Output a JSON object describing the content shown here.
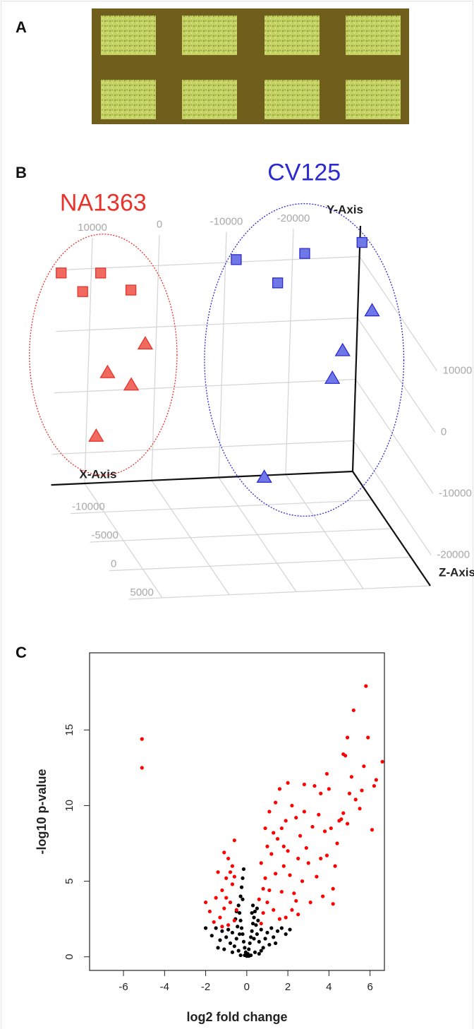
{
  "panel_labels": [
    "A",
    "B",
    "C"
  ],
  "chart_data": [
    {
      "type": "scatter3d",
      "xlabel": "X-Axis",
      "ylabel": "Y-Axis",
      "zlabel": "Z-Axis",
      "xlim": [
        -30000,
        15000
      ],
      "ylim": [
        -25000,
        15000
      ],
      "zlim": [
        -15000,
        5000
      ],
      "xticks": [
        -20000,
        -10000,
        0,
        10000
      ],
      "yticks": [
        -20000,
        -10000,
        0,
        10000
      ],
      "zticks": [
        -10000,
        -5000,
        0,
        5000
      ],
      "series": [
        {
          "name": "NA1363",
          "color": "#e8332c",
          "fill": "#f06a60",
          "x": [
            14500,
            8600,
            11200,
            4000,
            1600,
            7100,
            3500,
            8500
          ],
          "y": [
            9500,
            9200,
            6300,
            6200,
            -2700,
            -7100,
            -9300,
            -17400
          ],
          "z": [
            -15000,
            -15000,
            -15000,
            -15000,
            -15000,
            -15000,
            -15000,
            -15000
          ],
          "marker": [
            "square",
            "square",
            "square",
            "square",
            "triangle",
            "triangle",
            "triangle",
            "triangle"
          ]
        },
        {
          "name": "CV125",
          "color": "#2b2bd0",
          "fill": "#6f78e6",
          "x": [
            -11600,
            -21800,
            -17900,
            -29100,
            -28500,
            -25500,
            -24700,
            -15600
          ],
          "y": [
            10400,
            10900,
            6300,
            14200,
            6800,
            -1400,
            -6800,
            -23400
          ],
          "z": [
            -15000,
            -15000,
            -15000,
            -13000,
            -9000,
            -11000,
            -12000,
            -13000
          ],
          "marker": [
            "square",
            "square",
            "square",
            "square",
            "triangle",
            "triangle",
            "triangle",
            "triangle"
          ]
        }
      ]
    },
    {
      "type": "scatter",
      "xlabel": "log2 fold change",
      "ylabel": "-log10 p-value",
      "xlim": [
        -7.65,
        6.7
      ],
      "ylim": [
        -0.9,
        20.1
      ],
      "xticks": [
        -6,
        -4,
        -2,
        0,
        2,
        4,
        6
      ],
      "yticks": [
        0,
        5,
        10,
        15
      ],
      "series": [
        {
          "color": "#000000",
          "x": [
            0,
            0.05,
            -0.05,
            0.1,
            -0.1,
            0.15,
            -0.15,
            0.2,
            -0.2,
            0.25,
            -0.25,
            0.3,
            -0.3,
            0.35,
            -0.35,
            0.4,
            -0.4,
            -0.3,
            -0.25,
            -0.2,
            -0.15,
            0.3,
            0.25,
            -0.2,
            0.5,
            0.6,
            0.7,
            0.8,
            0.9,
            1.0,
            1.1,
            1.2,
            1.3,
            1.5,
            1.7,
            1.9,
            2.1,
            0.4,
            0.6,
            -0.5,
            -0.6,
            -0.7,
            -0.8,
            -0.9,
            -1.0,
            -1.1,
            -1.2,
            -1.3,
            -1.5,
            -1.7,
            -2.0,
            -0.4,
            -0.3,
            0.2,
            -0.45,
            0.45,
            0.55,
            -0.55,
            0.35,
            -0.35,
            0.1,
            -0.1,
            0.7,
            -0.7,
            1.4,
            -1.4,
            0.5,
            -0.5
          ],
          "y": [
            0.05,
            0.2,
            0.3,
            0.5,
            0.6,
            0.9,
            1.0,
            1.3,
            1.5,
            1.7,
            1.9,
            2.2,
            2.4,
            2.6,
            2.9,
            3.0,
            3.4,
            4.0,
            4.6,
            5.2,
            5.8,
            3.4,
            2.9,
            3.8,
            1.5,
            1.0,
            1.8,
            0.6,
            1.2,
            1.6,
            0.8,
            1.9,
            1.3,
            1.7,
            1.9,
            1.5,
            1.8,
            0.3,
            0.2,
            1.2,
            0.7,
            1.6,
            0.9,
            1.8,
            1.3,
            0.5,
            1.7,
            1.1,
            1.9,
            1.4,
            1.9,
            0.4,
            0.1,
            0.1,
            2.0,
            2.1,
            2.4,
            2.5,
            1.2,
            1.5,
            0.05,
            0.1,
            0.4,
            0.3,
            0.9,
            0.6,
            3.2,
            3.0
          ]
        },
        {
          "color": "#ff0000",
          "x": [
            -5.1,
            -5.1,
            5.8,
            5.2,
            4.9,
            5.9,
            4.7,
            4.8,
            6.6,
            5.7,
            6.3,
            6.2,
            5.1,
            5.6,
            5.0,
            5.3,
            5.5,
            4.7,
            4.9,
            6.1,
            4.6,
            3.9,
            4.0,
            3.6,
            3.3,
            2.8,
            2.0,
            1.6,
            4.5,
            4.1,
            3.8,
            3.5,
            4.4,
            3.9,
            4.3,
            4.2,
            4.2,
            3.7,
            3.4,
            3.0,
            2.9,
            2.6,
            2.4,
            2.2,
            1.9,
            1.7,
            2.7,
            2.5,
            2.3,
            2.0,
            1.8,
            1.5,
            1.4,
            1.2,
            1.1,
            1.0,
            0.9,
            0.8,
            0.7,
            0.6,
            1.3,
            1.6,
            1.9,
            2.2,
            2.5,
            0.7,
            0.9,
            1.1,
            1.4,
            1.0,
            3.1,
            3.2,
            2.8,
            3.6,
            2.1,
            1.7,
            0.8,
            1.3,
            1.8,
            2.4,
            -0.6,
            -0.9,
            -1.0,
            -0.7,
            -1.2,
            -1.5,
            -0.8,
            -1.1,
            -1.3,
            -0.6,
            -0.9,
            -1.6,
            -1.8,
            -2.0,
            -1.4,
            -0.7,
            -0.5,
            -1.2,
            -0.8,
            -1.0,
            -0.6,
            -1.1
          ],
          "y": [
            14.4,
            12.5,
            17.9,
            16.3,
            14.5,
            14.5,
            13.4,
            13.3,
            12.9,
            12.6,
            11.7,
            11.3,
            11.9,
            11.0,
            10.8,
            10.4,
            9.8,
            9.5,
            8.8,
            8.4,
            9.1,
            12.1,
            11.1,
            10.8,
            11.3,
            11.4,
            11.5,
            11.1,
            9.0,
            8.5,
            8.3,
            9.4,
            7.5,
            6.7,
            6.0,
            4.5,
            3.5,
            4.0,
            5.3,
            6.2,
            7.2,
            8.0,
            9.2,
            10.0,
            9.0,
            8.5,
            5.0,
            6.5,
            4.2,
            7.0,
            6.0,
            7.8,
            5.5,
            6.8,
            4.4,
            3.6,
            5.2,
            2.9,
            2.2,
            3.8,
            3.1,
            2.5,
            2.6,
            3.1,
            2.8,
            6.2,
            8.5,
            9.6,
            10.2,
            7.3,
            3.6,
            8.6,
            9.6,
            6.5,
            5.4,
            4.3,
            4.5,
            8.2,
            7.3,
            3.7,
            7.7,
            6.5,
            5.2,
            4.8,
            4.4,
            3.9,
            3.6,
            3.2,
            2.6,
            2.4,
            2.1,
            2.3,
            3.0,
            3.6,
            5.6,
            6.0,
            3.1,
            2.0,
            5.6,
            3.9,
            5.3,
            6.9
          ]
        }
      ]
    }
  ]
}
